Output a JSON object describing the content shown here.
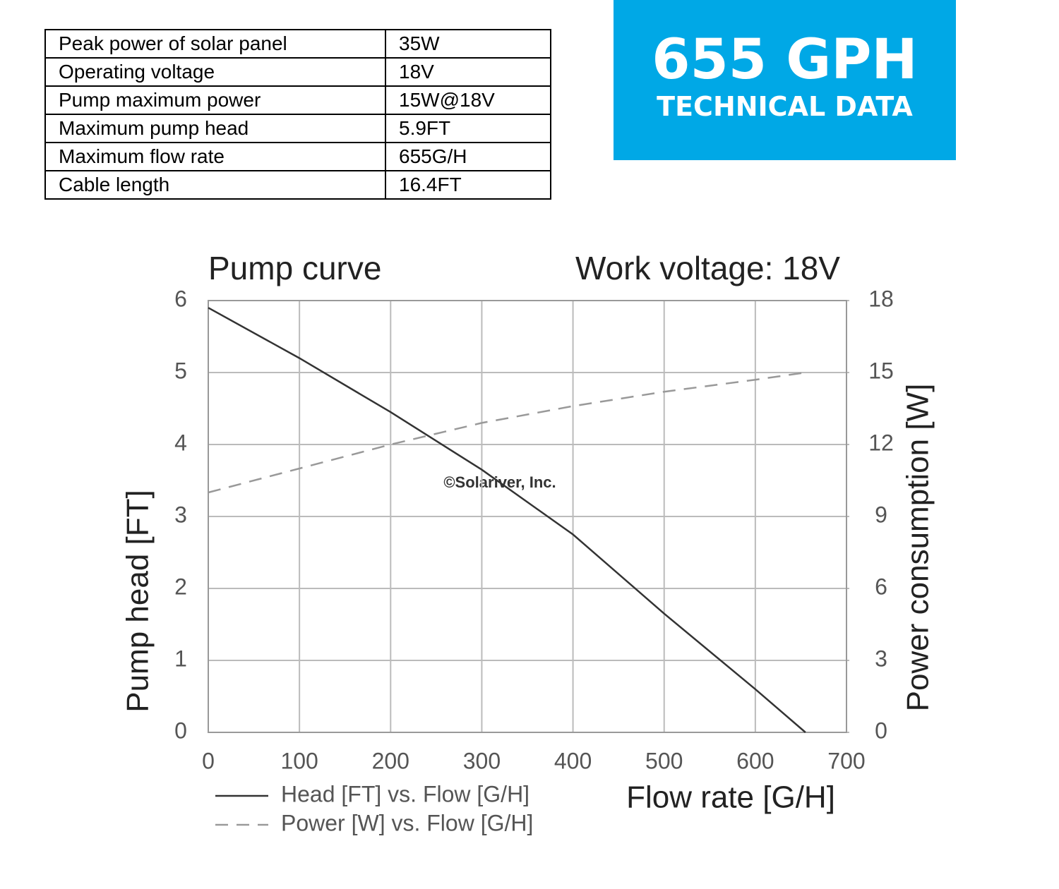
{
  "table": {
    "rows": [
      [
        "Peak power of solar panel",
        "35W"
      ],
      [
        "Operating voltage",
        "18V"
      ],
      [
        "Pump maximum power",
        "15W@18V"
      ],
      [
        "Maximum pump head",
        "5.9FT"
      ],
      [
        "Maximum flow rate",
        "655G/H"
      ],
      [
        "Cable length",
        "16.4FT"
      ]
    ]
  },
  "banner": {
    "title": "655 GPH",
    "subtitle": "TECHNICAL DATA"
  },
  "watermark": "©Solariver, Inc.",
  "chart_data": {
    "type": "line",
    "title": "Pump curve",
    "subtitle": "Work voltage: 18V",
    "x_label": "Flow rate [G/H]",
    "y_label": "Pump head [FT]",
    "y2_label": "Power consumption [W]",
    "x": [
      0,
      100,
      200,
      300,
      400,
      500,
      600,
      655
    ],
    "series": [
      {
        "name": "Head [FT] vs. Flow [G/H]",
        "color": "#333333",
        "line_style": "solid",
        "values": [
          5.9,
          5.2,
          4.45,
          3.65,
          2.75,
          1.65,
          0.6,
          0
        ]
      },
      {
        "name": "Power [W] vs. Flow [G/H]",
        "color": "#999999",
        "line_style": "dashed",
        "axis": "y2",
        "values": [
          10,
          11,
          12,
          12.9,
          13.6,
          14.2,
          14.7,
          15
        ]
      }
    ],
    "xlim": [
      0,
      700
    ],
    "xticks": [
      0,
      100,
      200,
      300,
      400,
      500,
      600,
      700
    ],
    "ylim": [
      0,
      6
    ],
    "yticks": [
      0,
      1,
      2,
      3,
      4,
      5,
      6
    ],
    "y2lim": [
      0,
      18
    ],
    "y2ticks": [
      0,
      3,
      6,
      9,
      12,
      15,
      18
    ],
    "grid": true
  }
}
